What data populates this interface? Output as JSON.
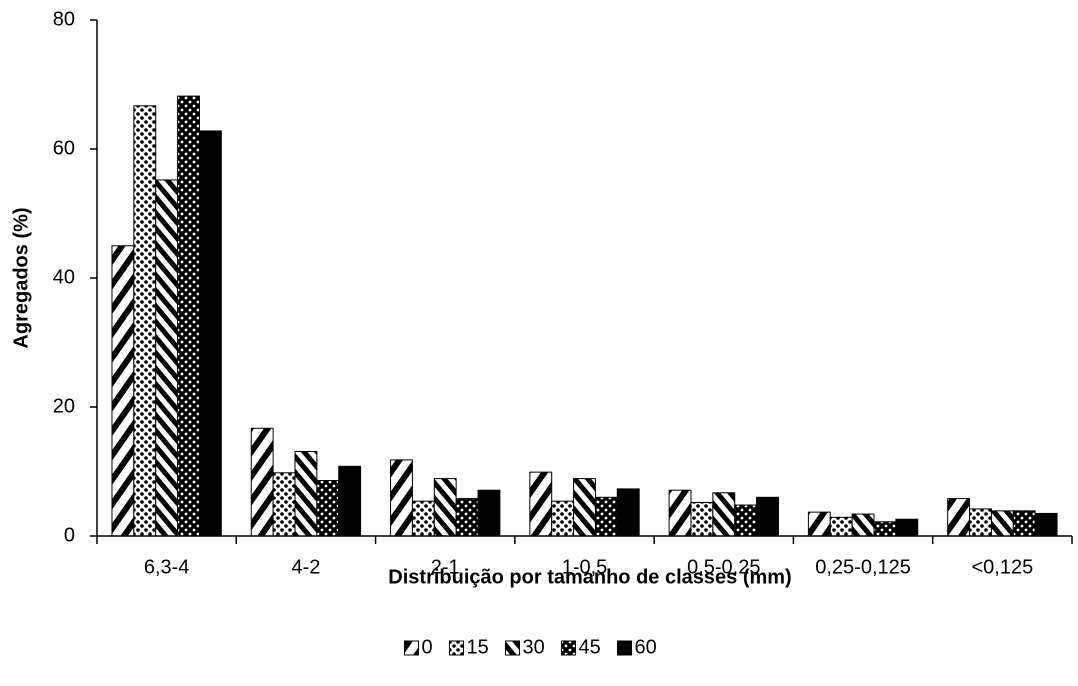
{
  "chart_data": {
    "type": "bar",
    "x_label": "Distribuição por tamanho de classes (mm)",
    "y_label": "Agregados (%)",
    "categories": [
      "6,3-4",
      "4-2",
      "2-1",
      "1-0,5",
      "0,5-0,25",
      "0,25-0,125",
      "<0,125"
    ],
    "series": [
      {
        "name": "0",
        "color": "#000000",
        "pattern": "diagonal-up",
        "values": [
          45.0,
          16.7,
          11.8,
          9.9,
          7.1,
          3.7,
          5.8
        ]
      },
      {
        "name": "15",
        "color": "#000000",
        "pattern": "dots-light",
        "values": [
          66.7,
          9.8,
          5.4,
          5.4,
          5.2,
          2.9,
          4.2
        ]
      },
      {
        "name": "30",
        "color": "#000000",
        "pattern": "diagonal-down",
        "values": [
          55.2,
          13.1,
          8.9,
          8.9,
          6.7,
          3.4,
          3.9
        ]
      },
      {
        "name": "45",
        "color": "#000000",
        "pattern": "dots-dark",
        "values": [
          68.2,
          8.6,
          5.8,
          6.0,
          4.8,
          2.2,
          3.9
        ]
      },
      {
        "name": "60",
        "color": "#000000",
        "pattern": "solid",
        "values": [
          62.8,
          10.8,
          7.1,
          7.3,
          6.0,
          2.6,
          3.5
        ]
      }
    ],
    "ylim": [
      0,
      80
    ],
    "yticks": [
      0,
      20,
      40,
      60,
      80
    ],
    "grid": false,
    "legend": "bottom"
  }
}
